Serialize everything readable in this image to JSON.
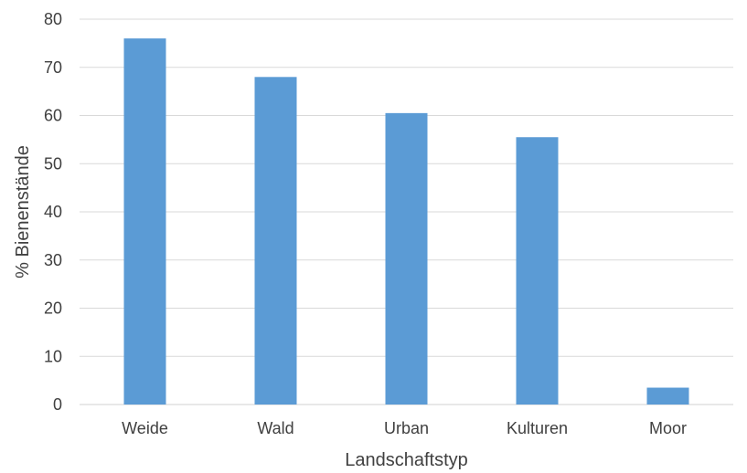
{
  "chart_data": {
    "type": "bar",
    "categories": [
      "Weide",
      "Wald",
      "Urban",
      "Kulturen",
      "Moor"
    ],
    "values": [
      76,
      68,
      60.5,
      55.5,
      3.5
    ],
    "xlabel": "Landschaftstyp",
    "ylabel": "% Bienenstände",
    "ylim": [
      0,
      80
    ],
    "yticks": [
      0,
      10,
      20,
      30,
      40,
      50,
      60,
      70,
      80
    ],
    "grid": true,
    "legend": "none",
    "bar_color": "#5b9bd5"
  }
}
